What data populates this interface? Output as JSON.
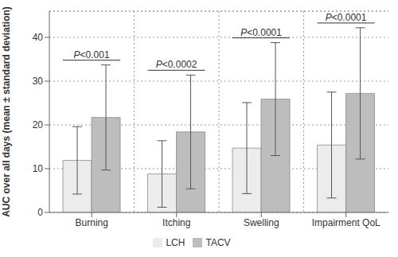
{
  "chart_data": {
    "type": "bar",
    "y_label": "AUC over all days (mean ± standard deviation)",
    "categories": [
      "Burning",
      "Itching",
      "Swelling",
      "Impairment QoL"
    ],
    "series": [
      {
        "name": "LCH",
        "color": "#ececec",
        "values": [
          11.9,
          8.8,
          14.7,
          15.4
        ],
        "error": [
          7.7,
          7.6,
          10.4,
          12.1
        ]
      },
      {
        "name": "TACV",
        "color": "#bdbdbd",
        "values": [
          21.7,
          18.4,
          25.9,
          27.2
        ],
        "error": [
          12.0,
          13.0,
          12.9,
          15.0
        ]
      }
    ],
    "annotations": [
      "P<0.001",
      "P<0.0002",
      "P<0.0001",
      "P<0.0001"
    ],
    "ylim": [
      0,
      46
    ],
    "yticks": [
      0,
      10,
      20,
      30,
      40
    ],
    "grid": true,
    "legend": "bottom"
  }
}
